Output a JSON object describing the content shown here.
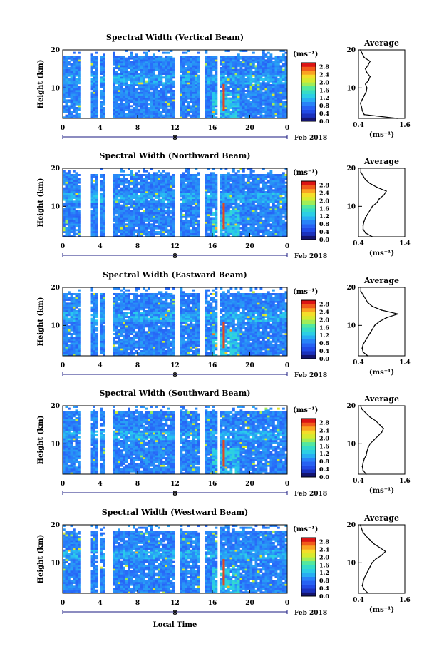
{
  "figure": {
    "xlabel_bottom": "Local Time",
    "date_label": "Feb 2018",
    "colorbar_unit": "(ms⁻¹)",
    "avg_title": "Average",
    "avg_xlabel": "(ms⁻¹)"
  },
  "chart_data": [
    {
      "type": "heatmap",
      "title": "Spectral Width (Vertical Beam)",
      "ylabel": "Height (km)",
      "x_ticks": [
        "0",
        "4",
        "8",
        "12",
        "16",
        "20",
        "0"
      ],
      "x_range": [
        0,
        24
      ],
      "y_ticks": [
        "10",
        "20"
      ],
      "y_range": [
        2,
        20
      ],
      "day_label": "8",
      "colorbar_ticks": [
        "0.0",
        "0.4",
        "0.8",
        "1.2",
        "1.6",
        "2.0",
        "2.4",
        "2.8"
      ],
      "colorbar_range": [
        0,
        3.0
      ],
      "profile": {
        "title": "Average",
        "x_ticks": [
          "0.4",
          "1.6"
        ],
        "x_range": [
          0.4,
          1.6
        ],
        "y_ticks": [
          "10",
          "20"
        ],
        "height_km": [
          2,
          3,
          4,
          5,
          6,
          7,
          8,
          9,
          10,
          11,
          12,
          13,
          14,
          15,
          16,
          17,
          18,
          19,
          20
        ],
        "width_ms": [
          1.4,
          0.55,
          0.5,
          0.48,
          0.45,
          0.5,
          0.55,
          0.6,
          0.62,
          0.58,
          0.66,
          0.7,
          0.62,
          0.58,
          0.65,
          0.7,
          0.55,
          0.5,
          0.45
        ]
      }
    },
    {
      "type": "heatmap",
      "title": "Spectral Width (Northward Beam)",
      "ylabel": "Height (km)",
      "x_ticks": [
        "0",
        "4",
        "8",
        "12",
        "16",
        "20",
        "0"
      ],
      "x_range": [
        0,
        24
      ],
      "y_ticks": [
        "10",
        "20"
      ],
      "y_range": [
        2,
        20
      ],
      "day_label": "8",
      "colorbar_ticks": [
        "0.0",
        "0.4",
        "0.8",
        "1.2",
        "1.6",
        "2.0",
        "2.4",
        "2.8"
      ],
      "colorbar_range": [
        0,
        3.0
      ],
      "profile": {
        "title": "Average",
        "x_ticks": [
          "0.4",
          "1.4"
        ],
        "x_range": [
          0.4,
          1.4
        ],
        "y_ticks": [
          "10",
          "20"
        ],
        "height_km": [
          2,
          3,
          4,
          5,
          6,
          7,
          8,
          9,
          10,
          11,
          12,
          13,
          14,
          15,
          16,
          17,
          18,
          19,
          20
        ],
        "width_ms": [
          0.7,
          0.55,
          0.5,
          0.5,
          0.52,
          0.55,
          0.6,
          0.65,
          0.7,
          0.8,
          0.85,
          0.95,
          1.0,
          0.8,
          0.65,
          0.55,
          0.5,
          0.45,
          0.45
        ]
      }
    },
    {
      "type": "heatmap",
      "title": "Spectral Width (Eastward Beam)",
      "ylabel": "Height (km)",
      "x_ticks": [
        "0",
        "4",
        "8",
        "12",
        "16",
        "20",
        "0"
      ],
      "x_range": [
        0,
        24
      ],
      "y_ticks": [
        "10",
        "20"
      ],
      "y_range": [
        2,
        20
      ],
      "day_label": "8",
      "colorbar_ticks": [
        "0.0",
        "0.4",
        "0.8",
        "1.2",
        "1.6",
        "2.0",
        "2.4",
        "2.8"
      ],
      "colorbar_range": [
        0,
        3.0
      ],
      "profile": {
        "title": "Average",
        "x_ticks": [
          "0.4",
          "1.4"
        ],
        "x_range": [
          0.4,
          1.4
        ],
        "y_ticks": [
          "10",
          "20"
        ],
        "height_km": [
          2,
          3,
          4,
          5,
          6,
          7,
          8,
          9,
          10,
          11,
          12,
          13,
          14,
          15,
          16,
          17,
          18,
          19,
          20
        ],
        "width_ms": [
          0.6,
          0.5,
          0.48,
          0.5,
          0.55,
          0.6,
          0.65,
          0.7,
          0.75,
          0.85,
          1.0,
          1.25,
          0.9,
          0.7,
          0.6,
          0.55,
          0.5,
          0.45,
          0.45
        ]
      }
    },
    {
      "type": "heatmap",
      "title": "Spectral Width (Southward Beam)",
      "ylabel": "Height (km)",
      "x_ticks": [
        "0",
        "4",
        "8",
        "12",
        "16",
        "20",
        "0"
      ],
      "x_range": [
        0,
        24
      ],
      "y_ticks": [
        "10",
        "20"
      ],
      "y_range": [
        2,
        20
      ],
      "day_label": "8",
      "colorbar_ticks": [
        "0.0",
        "0.4",
        "0.8",
        "1.2",
        "1.6",
        "2.0",
        "2.4",
        "2.8"
      ],
      "colorbar_range": [
        0,
        3.0
      ],
      "profile": {
        "title": "Average",
        "x_ticks": [
          "0.4",
          "1.6"
        ],
        "x_range": [
          0.4,
          1.6
        ],
        "y_ticks": [
          "10",
          "20"
        ],
        "height_km": [
          2,
          3,
          4,
          5,
          6,
          7,
          8,
          9,
          10,
          11,
          12,
          13,
          14,
          15,
          16,
          17,
          18,
          19,
          20
        ],
        "width_ms": [
          0.6,
          0.52,
          0.5,
          0.52,
          0.55,
          0.6,
          0.62,
          0.65,
          0.7,
          0.8,
          0.9,
          1.0,
          1.05,
          0.95,
          0.85,
          0.7,
          0.6,
          0.5,
          0.45
        ]
      }
    },
    {
      "type": "heatmap",
      "title": "Spectral Width (Westward Beam)",
      "ylabel": "Height (km)",
      "x_ticks": [
        "0",
        "4",
        "8",
        "12",
        "16",
        "20",
        "0"
      ],
      "x_range": [
        0,
        24
      ],
      "y_ticks": [
        "10",
        "20"
      ],
      "y_range": [
        2,
        20
      ],
      "day_label": "8",
      "colorbar_ticks": [
        "0.0",
        "0.4",
        "0.8",
        "1.2",
        "1.6",
        "2.0",
        "2.4",
        "2.8"
      ],
      "colorbar_range": [
        0,
        3.0
      ],
      "profile": {
        "title": "Average",
        "x_ticks": [
          "0.4",
          "1.6"
        ],
        "x_range": [
          0.4,
          1.6
        ],
        "y_ticks": [
          "10",
          "20"
        ],
        "height_km": [
          2,
          3,
          4,
          5,
          6,
          7,
          8,
          9,
          10,
          11,
          12,
          13,
          14,
          15,
          16,
          17,
          18,
          19,
          20
        ],
        "width_ms": [
          0.65,
          0.55,
          0.5,
          0.52,
          0.55,
          0.6,
          0.65,
          0.7,
          0.75,
          0.85,
          1.0,
          1.1,
          0.95,
          0.8,
          0.7,
          0.6,
          0.52,
          0.48,
          0.45
        ]
      }
    }
  ]
}
